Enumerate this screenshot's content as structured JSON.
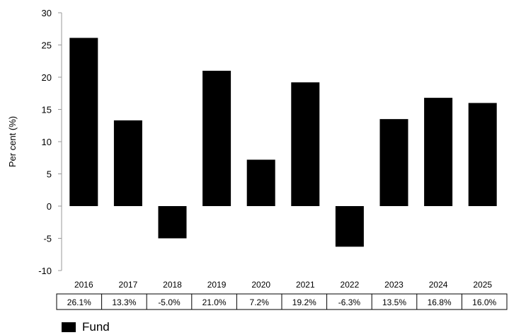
{
  "chart_data": {
    "type": "bar",
    "title": "",
    "xlabel": "",
    "ylabel": "Per cent (%)",
    "ylim": [
      -10,
      30
    ],
    "yticks": [
      -10,
      -5,
      0,
      5,
      10,
      15,
      20,
      25,
      30
    ],
    "categories": [
      "2016",
      "2017",
      "2018",
      "2019",
      "2020",
      "2021",
      "2022",
      "2023",
      "2024",
      "2025"
    ],
    "series": [
      {
        "name": "Fund",
        "color": "#000000",
        "values": [
          26.1,
          13.3,
          -5.0,
          21.0,
          7.2,
          19.2,
          -6.3,
          13.5,
          16.8,
          16.0
        ],
        "value_labels": [
          "26.1%",
          "13.3%",
          "-5.0%",
          "21.0%",
          "7.2%",
          "19.2%",
          "-6.3%",
          "13.5%",
          "16.8%",
          "16.0%"
        ]
      }
    ],
    "grid": false,
    "legend_position": "bottom-left"
  }
}
